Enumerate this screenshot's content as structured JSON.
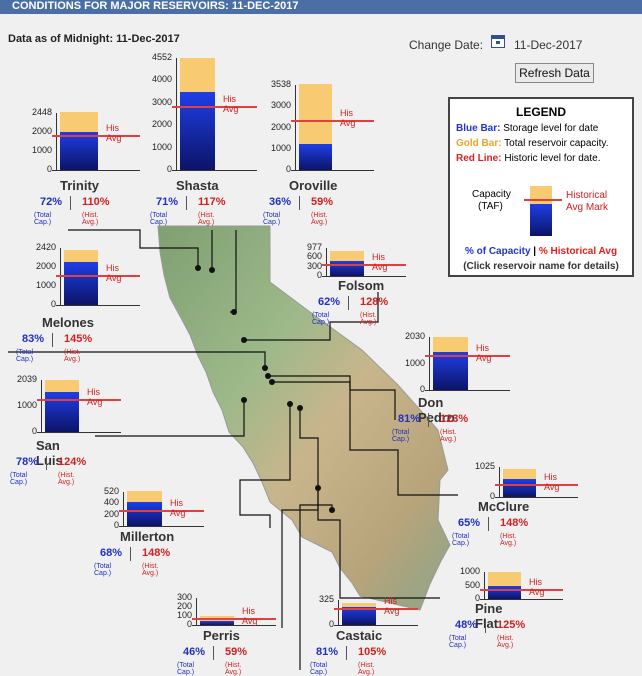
{
  "header": {
    "title": "CONDITIONS FOR MAJOR RESERVOIRS: 11-DEC-2017"
  },
  "as_of": "Data as of Midnight: 11-Dec-2017",
  "change_date": {
    "label": "Change Date:",
    "value": "11-Dec-2017",
    "icon": "calendar-icon"
  },
  "refresh_label": "Refresh Data",
  "legend": {
    "title": "LEGEND",
    "blue_key": "Blue Bar:",
    "blue_text": "Storage level for date",
    "gold_key": "Gold Bar:",
    "gold_text": "Total reservoir capacity.",
    "red_key": "Red Line:",
    "red_text": "Historic level for date.",
    "capacity_label": "Capacity",
    "taf_label": "(TAF)",
    "historical_label": "Historical",
    "avg_mark_label": "Avg Mark",
    "pct_capacity": "% of Capacity",
    "pct_hist": "% Historical Avg",
    "separator": "|",
    "note": "(Click reservoir name for details)"
  },
  "labels": {
    "his_avg": "His Avg",
    "total_cap": "(Total Cap.)",
    "hist_avg": "(Hist. Avg.)"
  },
  "colors": {
    "blue": "#1f3ee6",
    "gold": "#f8ca72",
    "red": "#e04040",
    "pct_blue": "#2030c0",
    "pct_red": "#d02020"
  },
  "reservoirs": [
    {
      "name": "Trinity",
      "capacity": 2448,
      "pct_capacity": "72%",
      "pct_hist": "110%",
      "ticks": [
        "2448",
        "2000",
        "1000",
        "0"
      ]
    },
    {
      "name": "Shasta",
      "capacity": 4552,
      "pct_capacity": "71%",
      "pct_hist": "117%",
      "ticks": [
        "4552",
        "4000",
        "3000",
        "2000",
        "1000",
        "0"
      ]
    },
    {
      "name": "Oroville",
      "capacity": 3538,
      "pct_capacity": "36%",
      "pct_hist": "59%",
      "ticks": [
        "3538",
        "3000",
        "2000",
        "1000",
        "0"
      ]
    },
    {
      "name": "Melones",
      "capacity": 2420,
      "pct_capacity": "83%",
      "pct_hist": "145%",
      "ticks": [
        "2420",
        "2000",
        "1000",
        "0"
      ]
    },
    {
      "name": "Folsom",
      "capacity": 977,
      "pct_capacity": "62%",
      "pct_hist": "128%",
      "ticks": [
        "977",
        "600",
        "300",
        "0"
      ]
    },
    {
      "name": "Don Pedro",
      "capacity": 2030,
      "pct_capacity": "81%",
      "pct_hist": "123%",
      "ticks": [
        "2030",
        "1000",
        "0"
      ]
    },
    {
      "name": "San Luis",
      "capacity": 2039,
      "pct_capacity": "78%",
      "pct_hist": "124%",
      "ticks": [
        "2039",
        "1000",
        "0"
      ]
    },
    {
      "name": "McClure",
      "capacity": 1025,
      "pct_capacity": "65%",
      "pct_hist": "148%",
      "ticks": [
        "1025",
        "0"
      ]
    },
    {
      "name": "Millerton",
      "capacity": 520,
      "pct_capacity": "68%",
      "pct_hist": "148%",
      "ticks": [
        "520",
        "400",
        "200",
        "0"
      ]
    },
    {
      "name": "Pine Flat",
      "capacity": 1000,
      "pct_capacity": "48%",
      "pct_hist": "125%",
      "ticks": [
        "1000",
        "500",
        "0"
      ]
    },
    {
      "name": "Perris",
      "capacity": 131,
      "pct_capacity": "46%",
      "pct_hist": "59%",
      "ticks": [
        "300",
        "200",
        "100",
        "0"
      ]
    },
    {
      "name": "Castaic",
      "capacity": 325,
      "pct_capacity": "81%",
      "pct_hist": "105%",
      "ticks": [
        "325",
        "0"
      ]
    }
  ]
}
